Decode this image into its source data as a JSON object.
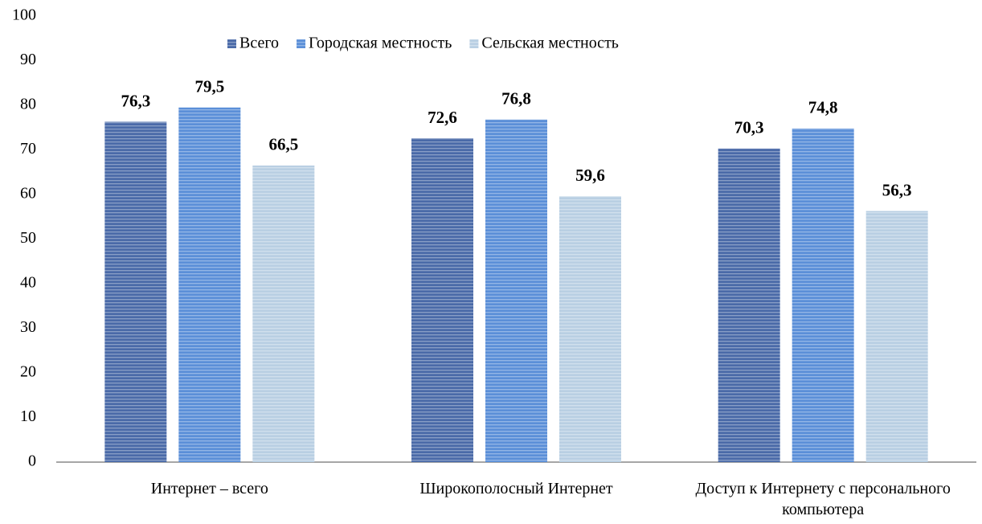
{
  "chart_data": {
    "type": "bar",
    "categories": [
      "Интернет – всего",
      "Широкополосный Интернет",
      "Доступ к Интернету с персонального компьютера"
    ],
    "series": [
      {
        "name": "Всего",
        "color": "#4a6aa8",
        "values": [
          76.3,
          72.6,
          70.3
        ],
        "value_labels": [
          "76,3",
          "72,6",
          "70,3"
        ]
      },
      {
        "name": "Городская местность",
        "color": "#5b8fd8",
        "values": [
          79.5,
          76.8,
          74.8
        ],
        "value_labels": [
          "79,5",
          "76,8",
          "74,8"
        ]
      },
      {
        "name": "Сельская местность",
        "color": "#b9cfe3",
        "values": [
          66.5,
          59.6,
          56.3
        ],
        "value_labels": [
          "66,5",
          "59,6",
          "56,3"
        ]
      }
    ],
    "ylim": [
      0,
      100
    ],
    "yticks": [
      0,
      10,
      20,
      30,
      40,
      50,
      60,
      70,
      80,
      90,
      100
    ],
    "grid": false,
    "legend": "top"
  }
}
